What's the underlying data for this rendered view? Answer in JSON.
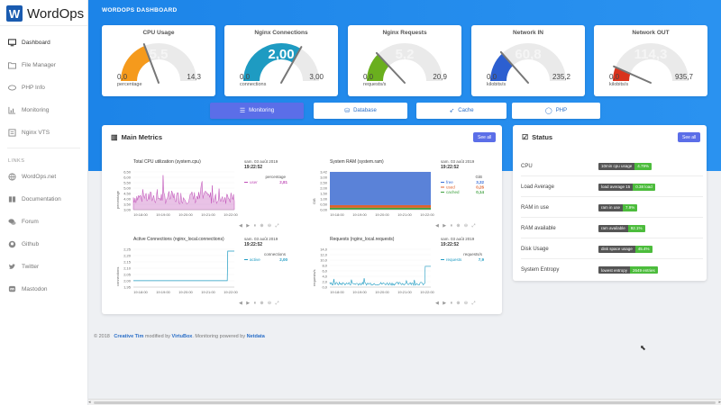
{
  "brand": {
    "logo_letter": "W",
    "name": "WordOps",
    "color": "#1a5bb0"
  },
  "nav": {
    "items": [
      {
        "label": "Dashboard",
        "icon": "monitor-icon"
      },
      {
        "label": "File Manager",
        "icon": "folder-icon"
      },
      {
        "label": "PHP Info",
        "icon": "php-icon"
      },
      {
        "label": "Monitoring",
        "icon": "chart-icon"
      },
      {
        "label": "Nginx VTS",
        "icon": "list-icon"
      }
    ],
    "links_title": "LINKS",
    "links": [
      {
        "label": "WordOps.net",
        "icon": "globe-icon"
      },
      {
        "label": "Documentation",
        "icon": "book-icon"
      },
      {
        "label": "Forum",
        "icon": "comments-icon"
      },
      {
        "label": "Github",
        "icon": "github-icon"
      },
      {
        "label": "Twitter",
        "icon": "twitter-icon"
      },
      {
        "label": "Mastodon",
        "icon": "mastodon-icon"
      }
    ]
  },
  "dashboard_title": "WORDOPS DASHBOARD",
  "gauges": [
    {
      "title": "CPU Usage",
      "value": "5,5",
      "min": "0,0",
      "max": "14,3",
      "unit": "percentage",
      "color": "#f59a1c",
      "fraction": 0.38
    },
    {
      "title": "Nginx Connections",
      "value": "2,00",
      "min": "0,0",
      "max": "3,00",
      "unit": "connections",
      "color": "#1e9bc2",
      "fraction": 0.67
    },
    {
      "title": "Nginx Requests",
      "value": "5,2",
      "min": "0,0",
      "max": "20,9",
      "unit": "requests/s",
      "color": "#6aaf1e",
      "fraction": 0.25
    },
    {
      "title": "Network IN",
      "value": "60,8",
      "min": "0,0",
      "max": "235,2",
      "unit": "kilobits/s",
      "color": "#2c5fd0",
      "fraction": 0.26
    },
    {
      "title": "Network OUT",
      "value": "114,3",
      "min": "0,0",
      "max": "935,7",
      "unit": "kilobits/s",
      "color": "#d9341e",
      "fraction": 0.12
    }
  ],
  "tabs": [
    {
      "label": "Monitoring",
      "icon": "server-icon",
      "active": true
    },
    {
      "label": "Database",
      "icon": "database-icon",
      "active": false
    },
    {
      "label": "Cache",
      "icon": "rocket-icon",
      "active": false
    },
    {
      "label": "PHP",
      "icon": "php-icon",
      "active": false
    }
  ],
  "main_metrics": {
    "title": "Main Metrics",
    "see_all": "See all",
    "charts": [
      {
        "title": "Total CPU utilization (system.cpu)",
        "ylabel": "percentage",
        "date": "sam. 03 août 2019",
        "time": "19:22:52",
        "legend_title": "percentage",
        "legend": [
          {
            "name": "user",
            "value": "2,81",
            "color": "#c04fb8"
          }
        ],
        "yticks": [
          "6,50",
          "6,00",
          "5,50",
          "5,00",
          "4,50",
          "4,00",
          "3,50",
          "3,00"
        ],
        "xticks": [
          "19:18:00",
          "19:19:00",
          "19:20:00",
          "19:21:00",
          "19:22:00"
        ]
      },
      {
        "title": "System RAM (system.ram)",
        "ylabel": "GiB",
        "date": "sam. 03 août 2019",
        "time": "19:22:52",
        "legend_title": "GiB",
        "legend": [
          {
            "name": "free",
            "value": "3,32",
            "color": "#3a6fd8"
          },
          {
            "name": "used",
            "value": "0,26",
            "color": "#e0622c"
          },
          {
            "name": "cached",
            "value": "0,14",
            "color": "#3ea03e"
          }
        ],
        "yticks": [
          "3,42",
          "3,00",
          "2,50",
          "2,00",
          "1,50",
          "1,00",
          "0,50",
          "0,00"
        ],
        "xticks": [
          "19:18:00",
          "19:19:00",
          "19:20:00",
          "19:21:00",
          "19:22:00"
        ]
      },
      {
        "title": "Active Connections (nginx_local.connections)",
        "ylabel": "connections",
        "date": "sam. 03 août 2019",
        "time": "19:22:52",
        "legend_title": "connections",
        "legend": [
          {
            "name": "active",
            "value": "2,00",
            "color": "#1e9bc2"
          }
        ],
        "yticks": [
          "2,25",
          "2,20",
          "2,15",
          "2,10",
          "2,05",
          "2,00",
          "1,95"
        ],
        "xticks": [
          "19:18:00",
          "19:19:00",
          "19:20:00",
          "19:21:00",
          "19:22:00"
        ]
      },
      {
        "title": "Requests (nginx_local.requests)",
        "ylabel": "requests/s",
        "date": "sam. 03 août 2019",
        "time": "19:22:52",
        "legend_title": "requests/s",
        "legend": [
          {
            "name": "requests",
            "value": "7,9",
            "color": "#1e9bc2"
          }
        ],
        "yticks": [
          "14,0",
          "12,0",
          "10,0",
          "8,0",
          "6,0",
          "4,0",
          "2,0",
          "0,0"
        ],
        "xticks": [
          "19:18:00",
          "19:19:00",
          "19:20:00",
          "19:21:00",
          "19:22:00"
        ]
      }
    ]
  },
  "status": {
    "title": "Status",
    "see_all": "See all",
    "rows": [
      {
        "label": "CPU",
        "key": "10min cpu usage",
        "value": "4.79%"
      },
      {
        "label": "Load Average",
        "key": "load average 15",
        "value": "0.38 load"
      },
      {
        "label": "RAM in use",
        "key": "ram in use",
        "value": "7.9%"
      },
      {
        "label": "RAM available",
        "key": "ram available",
        "value": "92.1%"
      },
      {
        "label": "Disk Usage",
        "key": "disk space usage",
        "value": "45.4%"
      },
      {
        "label": "System Entropy",
        "key": "lowest entropy",
        "value": "2649 entries"
      }
    ]
  },
  "footer": {
    "copy": "© 2018",
    "creative_tim": "Creative Tim",
    "modified_by": "modified by",
    "virtubox": "VirtuBox",
    "monitoring": ". Monitoring powered by",
    "netdata": "Netdata"
  }
}
